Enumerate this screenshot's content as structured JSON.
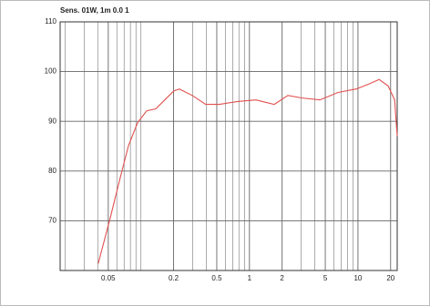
{
  "chart_data": {
    "type": "line",
    "title": "Sens. 01W, 1m 0.0 1",
    "x": [
      0.0404,
      0.052,
      0.063,
      0.0767,
      0.0931,
      0.113,
      0.137,
      0.166,
      0.201,
      0.226,
      0.297,
      0.395,
      0.53,
      0.78,
      1.15,
      1.69,
      2.26,
      3.02,
      4.46,
      6.56,
      9.66,
      12.9,
      15.7,
      19,
      21.8,
      23
    ],
    "series": [
      {
        "color": "#e0504f",
        "values": [
          61.4,
          70.5,
          77.8,
          85.1,
          89.7,
          92.1,
          92.5,
          94.3,
          96.1,
          96.5,
          95.2,
          93.4,
          93.4,
          94.0,
          94.3,
          93.4,
          95.2,
          94.7,
          94.3,
          95.8,
          96.5,
          97.6,
          98.4,
          97.1,
          94.3,
          87
        ]
      }
    ],
    "xscale": "log",
    "xlim": [
      0.018,
      23
    ],
    "xticks": [
      0.05,
      0.2,
      0.5,
      1,
      2,
      5,
      10,
      20
    ],
    "minor_xticks": [
      0.02,
      0.03,
      0.04,
      0.06,
      0.07,
      0.08,
      0.09,
      0.1,
      0.3,
      0.4,
      0.6,
      0.7,
      0.8,
      0.9,
      3,
      4,
      6,
      7,
      8,
      9
    ],
    "ylim": [
      60,
      110
    ],
    "yticks": [
      70,
      80,
      90,
      100,
      110
    ],
    "grid": true
  }
}
